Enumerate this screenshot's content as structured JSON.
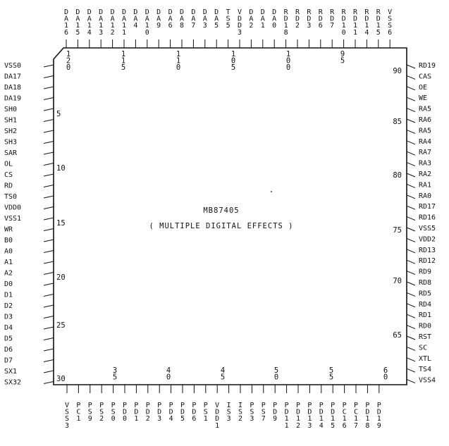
{
  "chip": {
    "name": "MB87405",
    "description": "( MULTIPLE DIGITAL EFFECTS )"
  },
  "pins": {
    "left": [
      "VSS0",
      "DA17",
      "DA18",
      "DA19",
      "SH0",
      "SH1",
      "SH2",
      "SH3",
      "SAR",
      "OL",
      "CS",
      "RD",
      "TS0",
      "VDD0",
      "VSS1",
      "WR",
      "B0",
      "A0",
      "A1",
      "A2",
      "D0",
      "D1",
      "D2",
      "D3",
      "D4",
      "D5",
      "D6",
      "D7",
      "SX1",
      "SX32"
    ],
    "right": [
      "RD19",
      "CAS",
      "OE",
      "WE",
      "RA5",
      "RA6",
      "RA5",
      "RA4",
      "RA7",
      "RA3",
      "RA2",
      "RA1",
      "RA0",
      "RD17",
      "RD16",
      "VSS5",
      "VDD2",
      "RD13",
      "RD12",
      "RD9",
      "RD8",
      "RD5",
      "RD4",
      "RD1",
      "RD0",
      "RST",
      "SC",
      "XTL",
      "TS4",
      "VSS4"
    ],
    "top": [
      "DA16",
      "DA15",
      "DA14",
      "DA13",
      "DA12",
      "DA11",
      "DA4",
      "DA10",
      "DA9",
      "DA6",
      "DA8",
      "DA7",
      "DA3",
      "DA5",
      "TS5",
      "VDD3",
      "DA2",
      "DA1",
      "DA0",
      "RD18",
      "RD2",
      "RD3",
      "RD6",
      "RD7",
      "RD10",
      "RD11",
      "RD14",
      "RD15",
      "VSS6"
    ],
    "bottom": [
      "VSS3",
      "PC1",
      "PS9",
      "PS2",
      "PS0",
      "PD0",
      "PD1",
      "PD2",
      "PD3",
      "PD4",
      "PD5",
      "PD6",
      "PS1",
      "VDD1",
      "IS3",
      "IS2",
      "PS3",
      "PS7",
      "PD9",
      "PD11",
      "PD12",
      "PD13",
      "PD14",
      "PD15",
      "PC16",
      "PC17",
      "PD18",
      "PD19"
    ]
  },
  "numbers": {
    "left": [
      "5",
      "10",
      "15",
      "20",
      "25",
      "30"
    ],
    "right": [
      "90",
      "85",
      "80",
      "75",
      "70",
      "65"
    ],
    "top": [
      "120",
      "115",
      "110",
      "105",
      "100",
      "95"
    ],
    "bottom": [
      "35",
      "40",
      "45",
      "50",
      "55",
      "60"
    ]
  }
}
